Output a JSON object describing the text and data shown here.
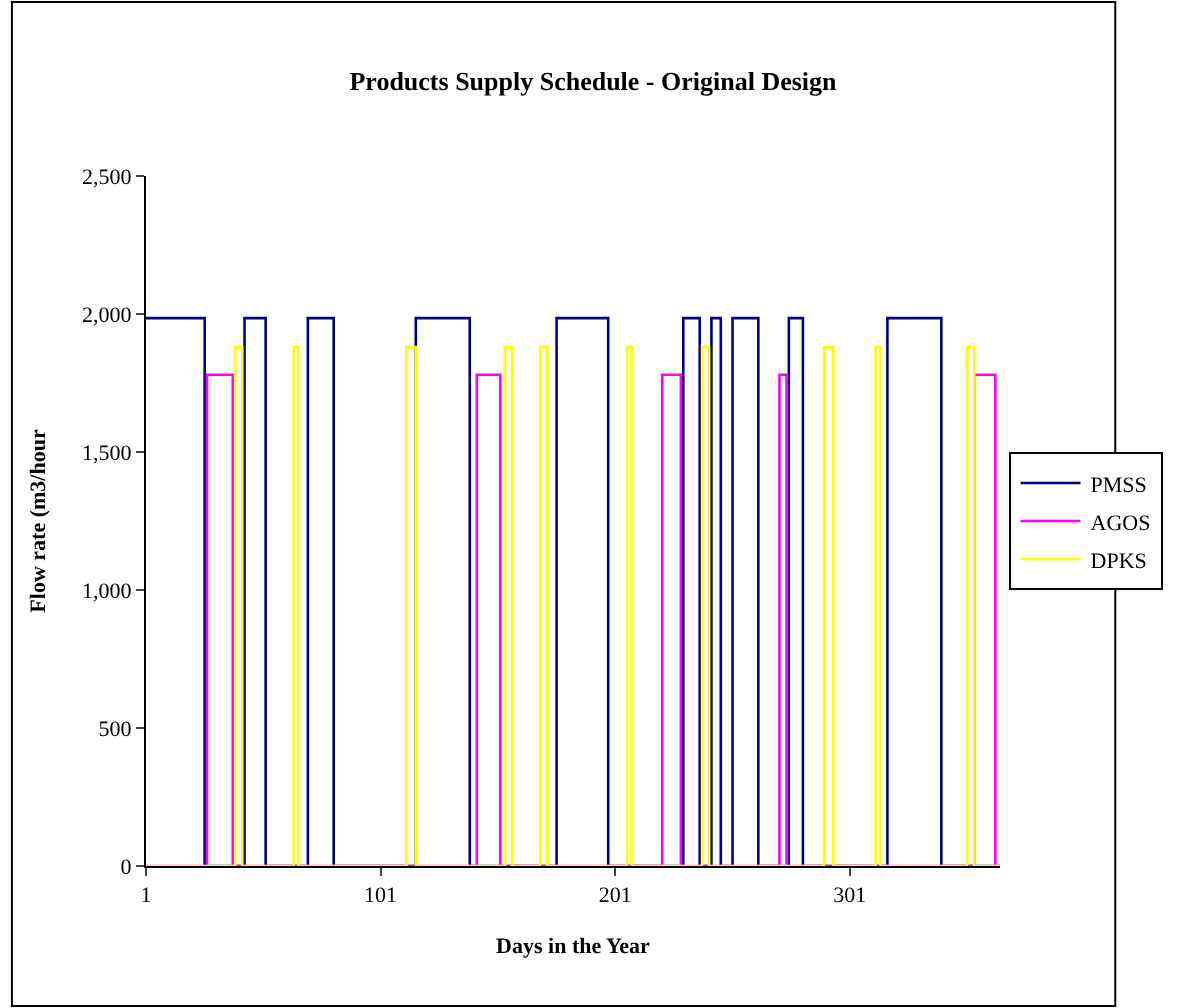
{
  "chart_data": {
    "type": "step",
    "title": "Products Supply Schedule - Original Design",
    "xlabel": "Days in the Year",
    "ylabel": "Flow rate (m3/hour",
    "xlim": [
      1,
      365
    ],
    "xticks": [
      1,
      101,
      201,
      301
    ],
    "ylim": [
      0,
      2500
    ],
    "yticks": [
      {
        "value": 0,
        "label": "0"
      },
      {
        "value": 500,
        "label": "500"
      },
      {
        "value": 1000,
        "label": "1,000"
      },
      {
        "value": 1500,
        "label": "1,500"
      },
      {
        "value": 2000,
        "label": "2,000"
      },
      {
        "value": 2500,
        "label": "2,500"
      }
    ],
    "legend": "right",
    "marker": "none",
    "line_style": "solid",
    "series": [
      {
        "name": "PMSS",
        "color": "#000080",
        "x": [
          1,
          26,
          43,
          52,
          70,
          81,
          116,
          139,
          176,
          198,
          230,
          237,
          242,
          246,
          251,
          262,
          275,
          281,
          317,
          340,
          365
        ],
        "values": [
          1985,
          0,
          1985,
          0,
          1985,
          0,
          1985,
          0,
          1985,
          0,
          1985,
          0,
          1985,
          0,
          1985,
          0,
          1985,
          0,
          1985,
          0,
          0
        ]
      },
      {
        "name": "AGOS",
        "color": "#ff00ff",
        "x": [
          1,
          27,
          38,
          142,
          152,
          221,
          229,
          271,
          274,
          354,
          363,
          365
        ],
        "values": [
          0,
          1780,
          0,
          1780,
          0,
          1780,
          0,
          1780,
          0,
          1780,
          0,
          0
        ]
      },
      {
        "name": "DPKS",
        "color": "#ffff00",
        "x": [
          1,
          39,
          42,
          64,
          66,
          112,
          116,
          154,
          157,
          169,
          172,
          206,
          208,
          238,
          241,
          290,
          294,
          312,
          314,
          351,
          354,
          365
        ],
        "values": [
          0,
          1880,
          0,
          1880,
          0,
          1880,
          0,
          1880,
          0,
          1880,
          0,
          1880,
          0,
          1880,
          0,
          1880,
          0,
          1880,
          0,
          1880,
          0,
          0
        ]
      }
    ]
  }
}
